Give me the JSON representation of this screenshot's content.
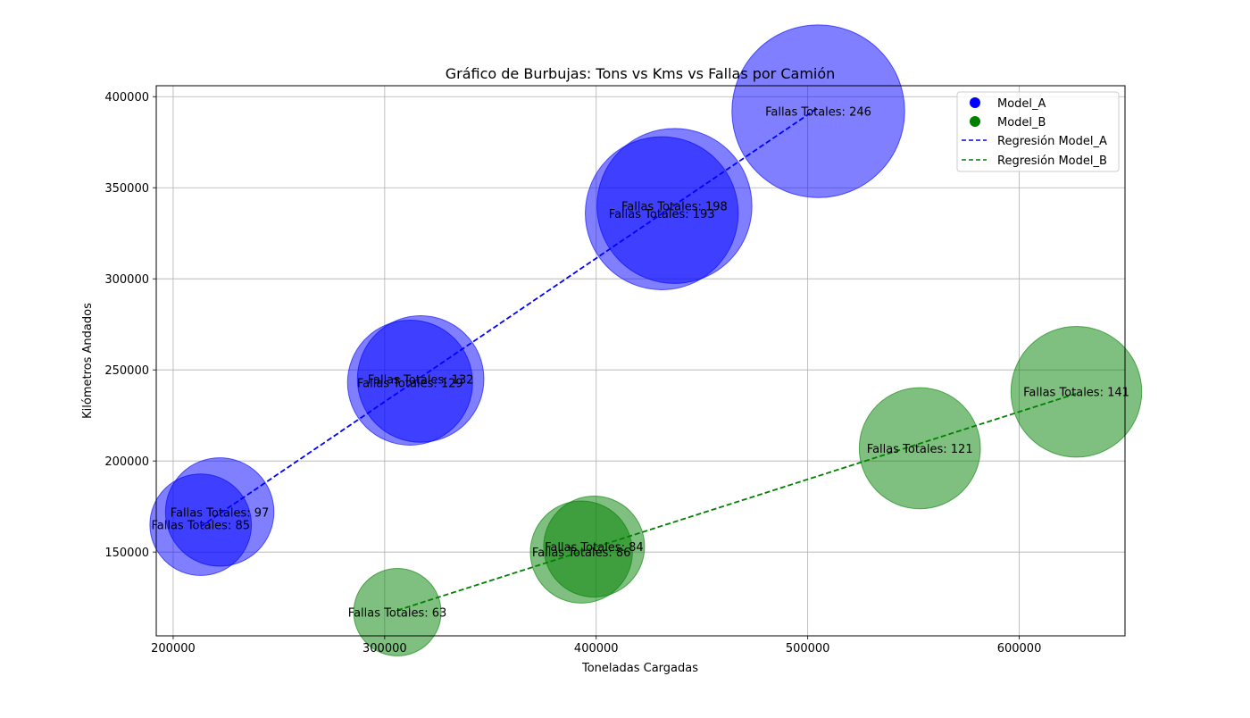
{
  "chart_data": {
    "type": "scatter",
    "title": "Gráfico de Burbujas: Tons vs Kms vs Fallas por Camión",
    "xlabel": "Toneladas Cargadas",
    "ylabel": "Kilómetros Andados",
    "xlim": [
      192000,
      650000
    ],
    "ylim": [
      104000,
      406000
    ],
    "xticks": [
      200000,
      300000,
      400000,
      500000,
      600000
    ],
    "yticks": [
      150000,
      200000,
      250000,
      300000,
      350000,
      400000
    ],
    "xtick_labels": [
      "200000",
      "300000",
      "400000",
      "500000",
      "600000"
    ],
    "ytick_labels": [
      "150000",
      "200000",
      "250000",
      "300000",
      "350000",
      "400000"
    ],
    "grid": true,
    "legend_position": "top-right",
    "label_prefix": "Fallas Totales: ",
    "series": [
      {
        "name": "Model_A",
        "color": "#0000ff",
        "points": [
          {
            "x": 213000,
            "y": 165000,
            "fallas": 85
          },
          {
            "x": 222000,
            "y": 172000,
            "fallas": 97
          },
          {
            "x": 312000,
            "y": 243000,
            "fallas": 129
          },
          {
            "x": 317000,
            "y": 245000,
            "fallas": 132
          },
          {
            "x": 431000,
            "y": 336000,
            "fallas": 193
          },
          {
            "x": 437000,
            "y": 340000,
            "fallas": 198
          },
          {
            "x": 505000,
            "y": 392000,
            "fallas": 246
          }
        ],
        "regression": {
          "label": "Regresión Model_A",
          "x": [
            213000,
            505000
          ],
          "y": [
            164000,
            394000
          ]
        }
      },
      {
        "name": "Model_B",
        "color": "#008000",
        "points": [
          {
            "x": 306000,
            "y": 117000,
            "fallas": 63
          },
          {
            "x": 393000,
            "y": 150000,
            "fallas": 86
          },
          {
            "x": 399000,
            "y": 153000,
            "fallas": 84
          },
          {
            "x": 553000,
            "y": 207000,
            "fallas": 121
          },
          {
            "x": 627000,
            "y": 238000,
            "fallas": 141
          }
        ],
        "regression": {
          "label": "Regresión Model_B",
          "x": [
            306000,
            627000
          ],
          "y": [
            118000,
            237000
          ]
        }
      }
    ]
  }
}
